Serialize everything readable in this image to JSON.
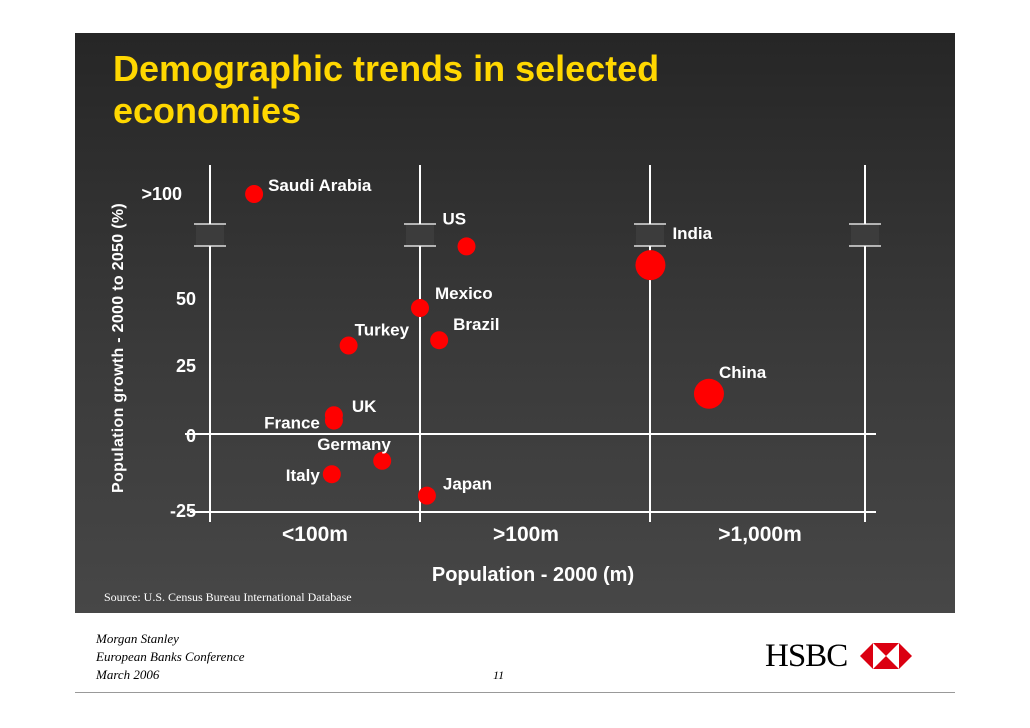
{
  "slide": {
    "title": "Demographic trends in selected economies",
    "source": "Source: U.S. Census Bureau International Database",
    "footer_lines": [
      "Morgan Stanley",
      "European Banks Conference",
      "March 2006"
    ],
    "page_number": "11",
    "logo_text": "HSBC"
  },
  "colors": {
    "background": "#333333",
    "title": "#ffd700",
    "points": "#ff0000",
    "text": "#ffffff"
  },
  "chart_data": {
    "type": "scatter",
    "title": "",
    "xlabel": "Population - 2000 (m)",
    "ylabel": "Population growth - 2000 to 2050 (%)",
    "y_ticks": [
      ">100",
      "50",
      "25",
      "0",
      "-25"
    ],
    "x_categories": [
      "<100m",
      ">100m",
      ">1,000m"
    ],
    "axis_break": "y-axis broken between 50 and >100",
    "points": [
      {
        "name": "Saudi Arabia",
        "population_m": 21,
        "growth_pct": 110
      },
      {
        "name": "US",
        "population_m": 282,
        "growth_pct": 70
      },
      {
        "name": "India",
        "population_m": 1002,
        "growth_pct": 63
      },
      {
        "name": "Mexico",
        "population_m": 100,
        "growth_pct": 47
      },
      {
        "name": "Brazil",
        "population_m": 175,
        "growth_pct": 35
      },
      {
        "name": "Turkey",
        "population_m": 66,
        "growth_pct": 33
      },
      {
        "name": "China",
        "population_m": 1268,
        "growth_pct": 15
      },
      {
        "name": "UK",
        "population_m": 59,
        "growth_pct": 7
      },
      {
        "name": "France",
        "population_m": 59,
        "growth_pct": 5
      },
      {
        "name": "Germany",
        "population_m": 82,
        "growth_pct": -10
      },
      {
        "name": "Italy",
        "population_m": 58,
        "growth_pct": -15
      },
      {
        "name": "Japan",
        "population_m": 127,
        "growth_pct": -23
      }
    ]
  }
}
